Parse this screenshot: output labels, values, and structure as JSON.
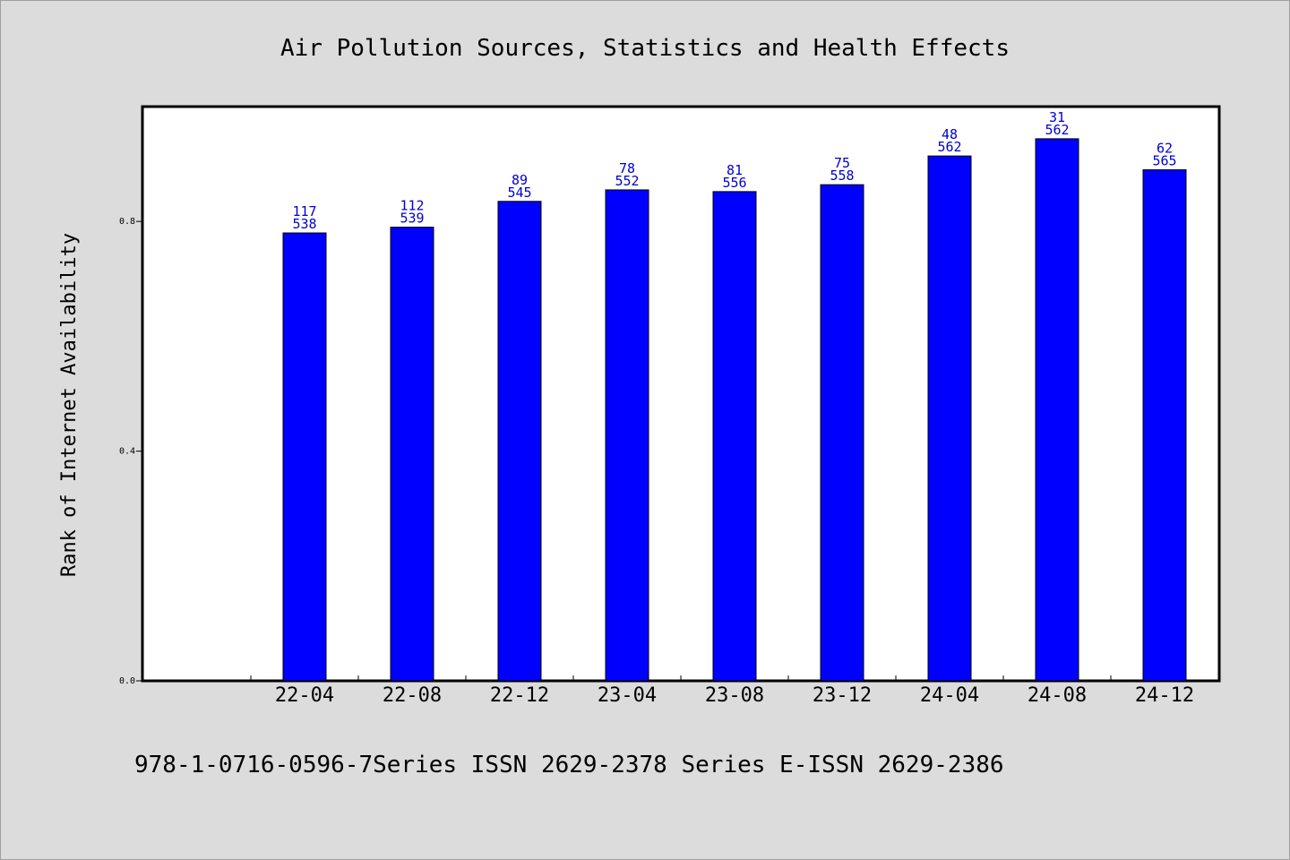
{
  "chart_data": {
    "type": "bar",
    "title": "Air Pollution Sources, Statistics and Health Effects",
    "xlabel": "",
    "ylabel": "Rank of Internet Availability",
    "categories": [
      "22-04",
      "22-08",
      "22-12",
      "23-04",
      "23-08",
      "23-12",
      "24-04",
      "24-08",
      "24-12"
    ],
    "values": [
      0.78,
      0.79,
      0.835,
      0.855,
      0.852,
      0.864,
      0.914,
      0.944,
      0.89
    ],
    "label_top": [
      "117",
      "112",
      "89",
      "78",
      "81",
      "75",
      "48",
      "31",
      "62"
    ],
    "label_bottom": [
      "538",
      "539",
      "545",
      "552",
      "556",
      "558",
      "562",
      "562",
      "565"
    ],
    "yticks": [
      "0.0",
      "0.4",
      "0.8"
    ],
    "ytick_values": [
      0.0,
      0.4,
      0.8
    ],
    "ylim": [
      0,
      1.0
    ],
    "grid": false,
    "bar_color": "#0000ff",
    "label_color": "#0000cc"
  },
  "footer": {
    "text": "978-1-0716-0596-7Series ISSN 2629-2378 Series E-ISSN 2629-2386"
  }
}
